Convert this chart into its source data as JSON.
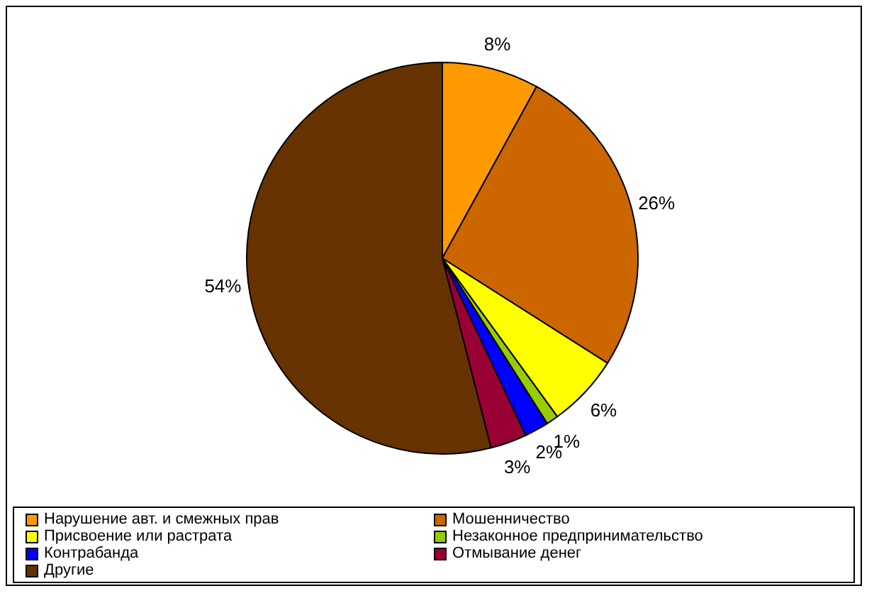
{
  "chart_data": {
    "type": "pie",
    "categories": [
      "Нарушение авт. и смежных прав",
      "Мошенничество",
      "Присвоение или растрата",
      "Незаконное предпринимательство",
      "Контрабанда",
      "Отмывание денег",
      "Другие"
    ],
    "values": [
      8,
      26,
      6,
      1,
      2,
      3,
      54
    ],
    "value_labels": [
      "8%",
      "26%",
      "6%",
      "1%",
      "2%",
      "3%",
      "54%"
    ],
    "colors": [
      "#ff9900",
      "#cc6600",
      "#ffff00",
      "#99cc00",
      "#0000ff",
      "#990033",
      "#663300"
    ],
    "legend": "bottom"
  }
}
